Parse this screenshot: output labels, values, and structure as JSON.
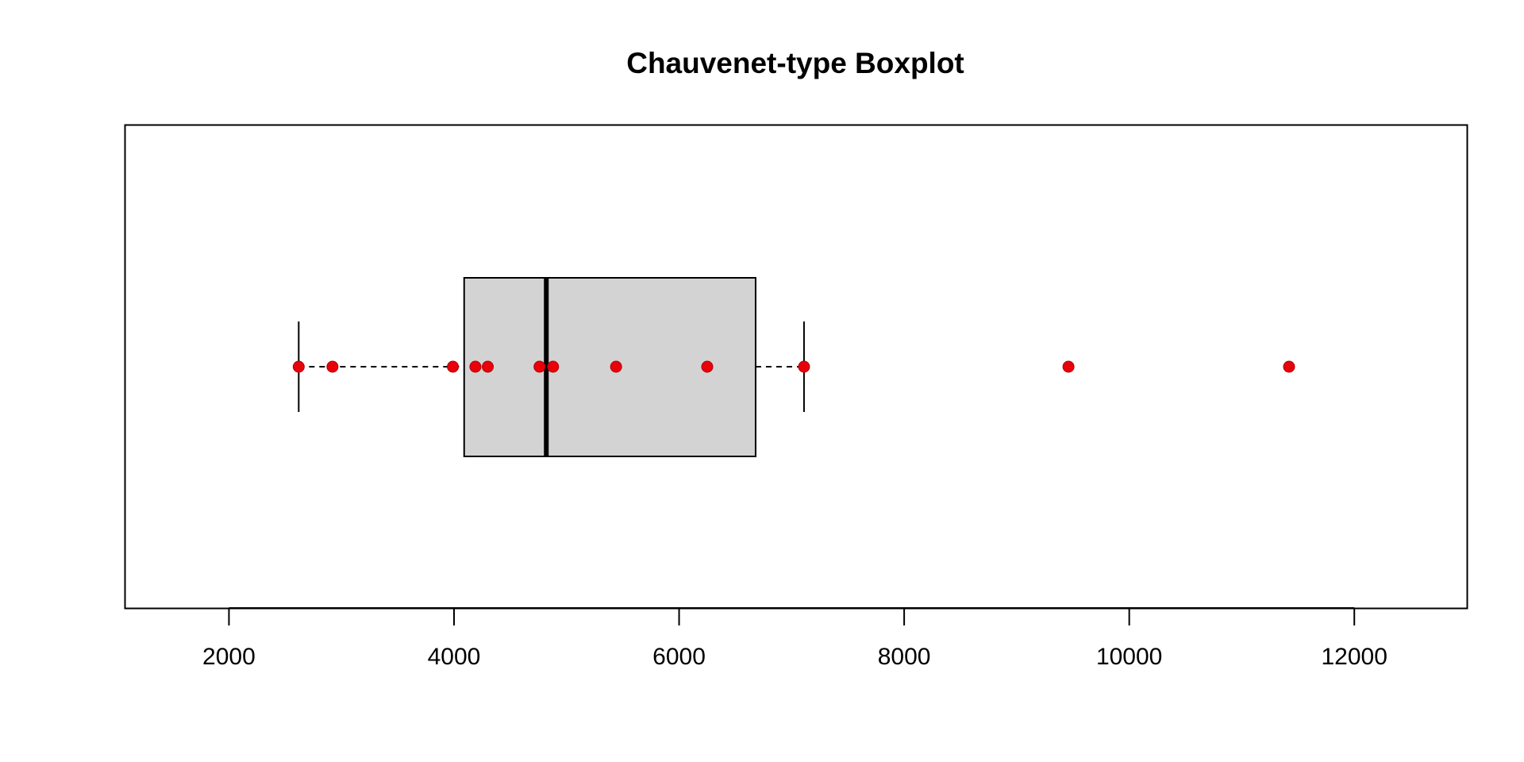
{
  "chart_data": {
    "type": "boxplot",
    "orientation": "horizontal",
    "title": "Chauvenet-type Boxplot",
    "xlabel": "",
    "ylabel": "",
    "xlim": [
      1080,
      13000
    ],
    "x_ticks": [
      2000,
      4000,
      6000,
      8000,
      10000,
      12000
    ],
    "x_tick_labels": [
      "2000",
      "4000",
      "6000",
      "8000",
      "10000",
      "12000"
    ],
    "grid": false,
    "box": {
      "lower_whisker": 2620,
      "q1": 4090,
      "median": 4820,
      "q3": 6680,
      "upper_whisker": 7110
    },
    "points": [
      2620,
      2920,
      3990,
      4190,
      4300,
      4760,
      4880,
      5440,
      6250,
      7110,
      9460,
      11420
    ],
    "colors": {
      "box_fill": "#d3d3d3",
      "point": "#e8000b",
      "point_outline": "#b00000",
      "line": "#000000"
    }
  }
}
